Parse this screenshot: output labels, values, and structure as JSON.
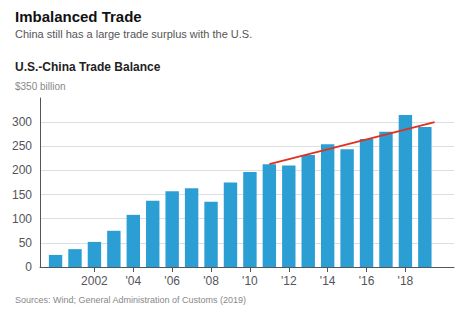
{
  "chart_data": {
    "type": "bar",
    "title": "Imbalanced Trade",
    "subtitle": "China still has a large trade surplus with the U.S.",
    "ylabel": "$350 billion",
    "annotations": [
      "U.S.-China Trade Balance",
      "Sources: Wind; General Administration of Customs (2019)"
    ],
    "series": [
      {
        "type": "bar",
        "color": "#2b9fd4",
        "x": [
          2000,
          2001,
          2002,
          2003,
          2004,
          2005,
          2006,
          2007,
          2008,
          2009,
          2010,
          2011,
          2012,
          2013,
          2014,
          2015,
          2016,
          2017,
          2018,
          2019
        ],
        "values": [
          25,
          37,
          52,
          75,
          108,
          137,
          157,
          163,
          135,
          175,
          197,
          213,
          210,
          232,
          254,
          244,
          265,
          280,
          315,
          290
        ]
      },
      {
        "type": "line",
        "color": "#e03020",
        "x": [
          2011,
          2019.5
        ],
        "values": [
          213,
          300
        ]
      }
    ],
    "xlim": [
      1999.2,
      2020.5
    ],
    "xticks": [
      2002,
      {
        "value": 2004,
        "label": "'04"
      },
      {
        "value": 2006,
        "label": "'06"
      },
      {
        "value": 2008,
        "label": "'08"
      },
      {
        "value": 2010,
        "label": "'10"
      },
      {
        "value": 2012,
        "label": "'12"
      },
      {
        "value": 2014,
        "label": "'14"
      },
      {
        "value": 2016,
        "label": "'16"
      },
      {
        "value": 2018,
        "label": "'18"
      }
    ],
    "ylim": [
      0,
      350
    ],
    "yticks": [
      0,
      50,
      100,
      150,
      200,
      250,
      300
    ],
    "grid": true
  }
}
